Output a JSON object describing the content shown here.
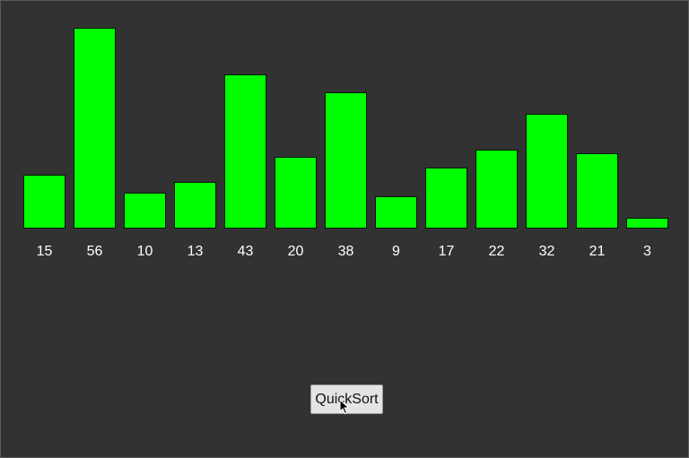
{
  "visualizer": {
    "bar_color": "#00ff00",
    "background_color": "#323232"
  },
  "chart_data": {
    "type": "bar",
    "categories": [
      "15",
      "56",
      "10",
      "13",
      "43",
      "20",
      "38",
      "9",
      "17",
      "22",
      "32",
      "21",
      "3"
    ],
    "values": [
      15,
      56,
      10,
      13,
      43,
      20,
      38,
      9,
      17,
      22,
      32,
      21,
      3
    ],
    "title": "",
    "xlabel": "",
    "ylabel": ""
  },
  "controls": {
    "sort_button_label": "QuickSort"
  },
  "cursor": {
    "icon": "arrow-pointer-icon"
  }
}
